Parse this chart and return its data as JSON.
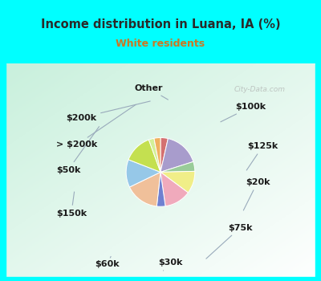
{
  "title": "Income distribution in Luana, IA (%)",
  "subtitle": "White residents",
  "title_color": "#2a2a2a",
  "subtitle_color": "#cc7722",
  "bg_cyan": "#00ffff",
  "watermark": "City-Data.com",
  "labels": [
    "Other",
    "$100k",
    "$125k",
    "$20k",
    "$75k",
    "$30k",
    "$60k",
    "$150k",
    "$50k",
    "> $200k",
    "$200k"
  ],
  "values": [
    3.5,
    16.5,
    4.5,
    10.5,
    12.5,
    4.0,
    16.0,
    13.0,
    13.5,
    2.5,
    3.0
  ],
  "colors": [
    "#d47070",
    "#a89ccc",
    "#99cc99",
    "#f0ee88",
    "#f0aabc",
    "#7080d0",
    "#f0c09a",
    "#96c8e8",
    "#c4e050",
    "#d4f098",
    "#f0b060"
  ],
  "startangle": 90,
  "label_fontsize": 8.0,
  "label_positions": {
    "Other": [
      0.445,
      0.885,
      "center"
    ],
    "$100k": [
      0.845,
      0.8,
      "left"
    ],
    "$125k": [
      0.9,
      0.62,
      "left"
    ],
    "$20k": [
      0.89,
      0.455,
      "left"
    ],
    "$75k": [
      0.81,
      0.245,
      "left"
    ],
    "$30k": [
      0.545,
      0.085,
      "center"
    ],
    "$60k": [
      0.255,
      0.078,
      "center"
    ],
    "$150k": [
      0.02,
      0.31,
      "left"
    ],
    "$50k": [
      0.02,
      0.51,
      "left"
    ],
    "> $200k": [
      0.02,
      0.625,
      "left"
    ],
    "$200k": [
      0.065,
      0.75,
      "left"
    ]
  }
}
